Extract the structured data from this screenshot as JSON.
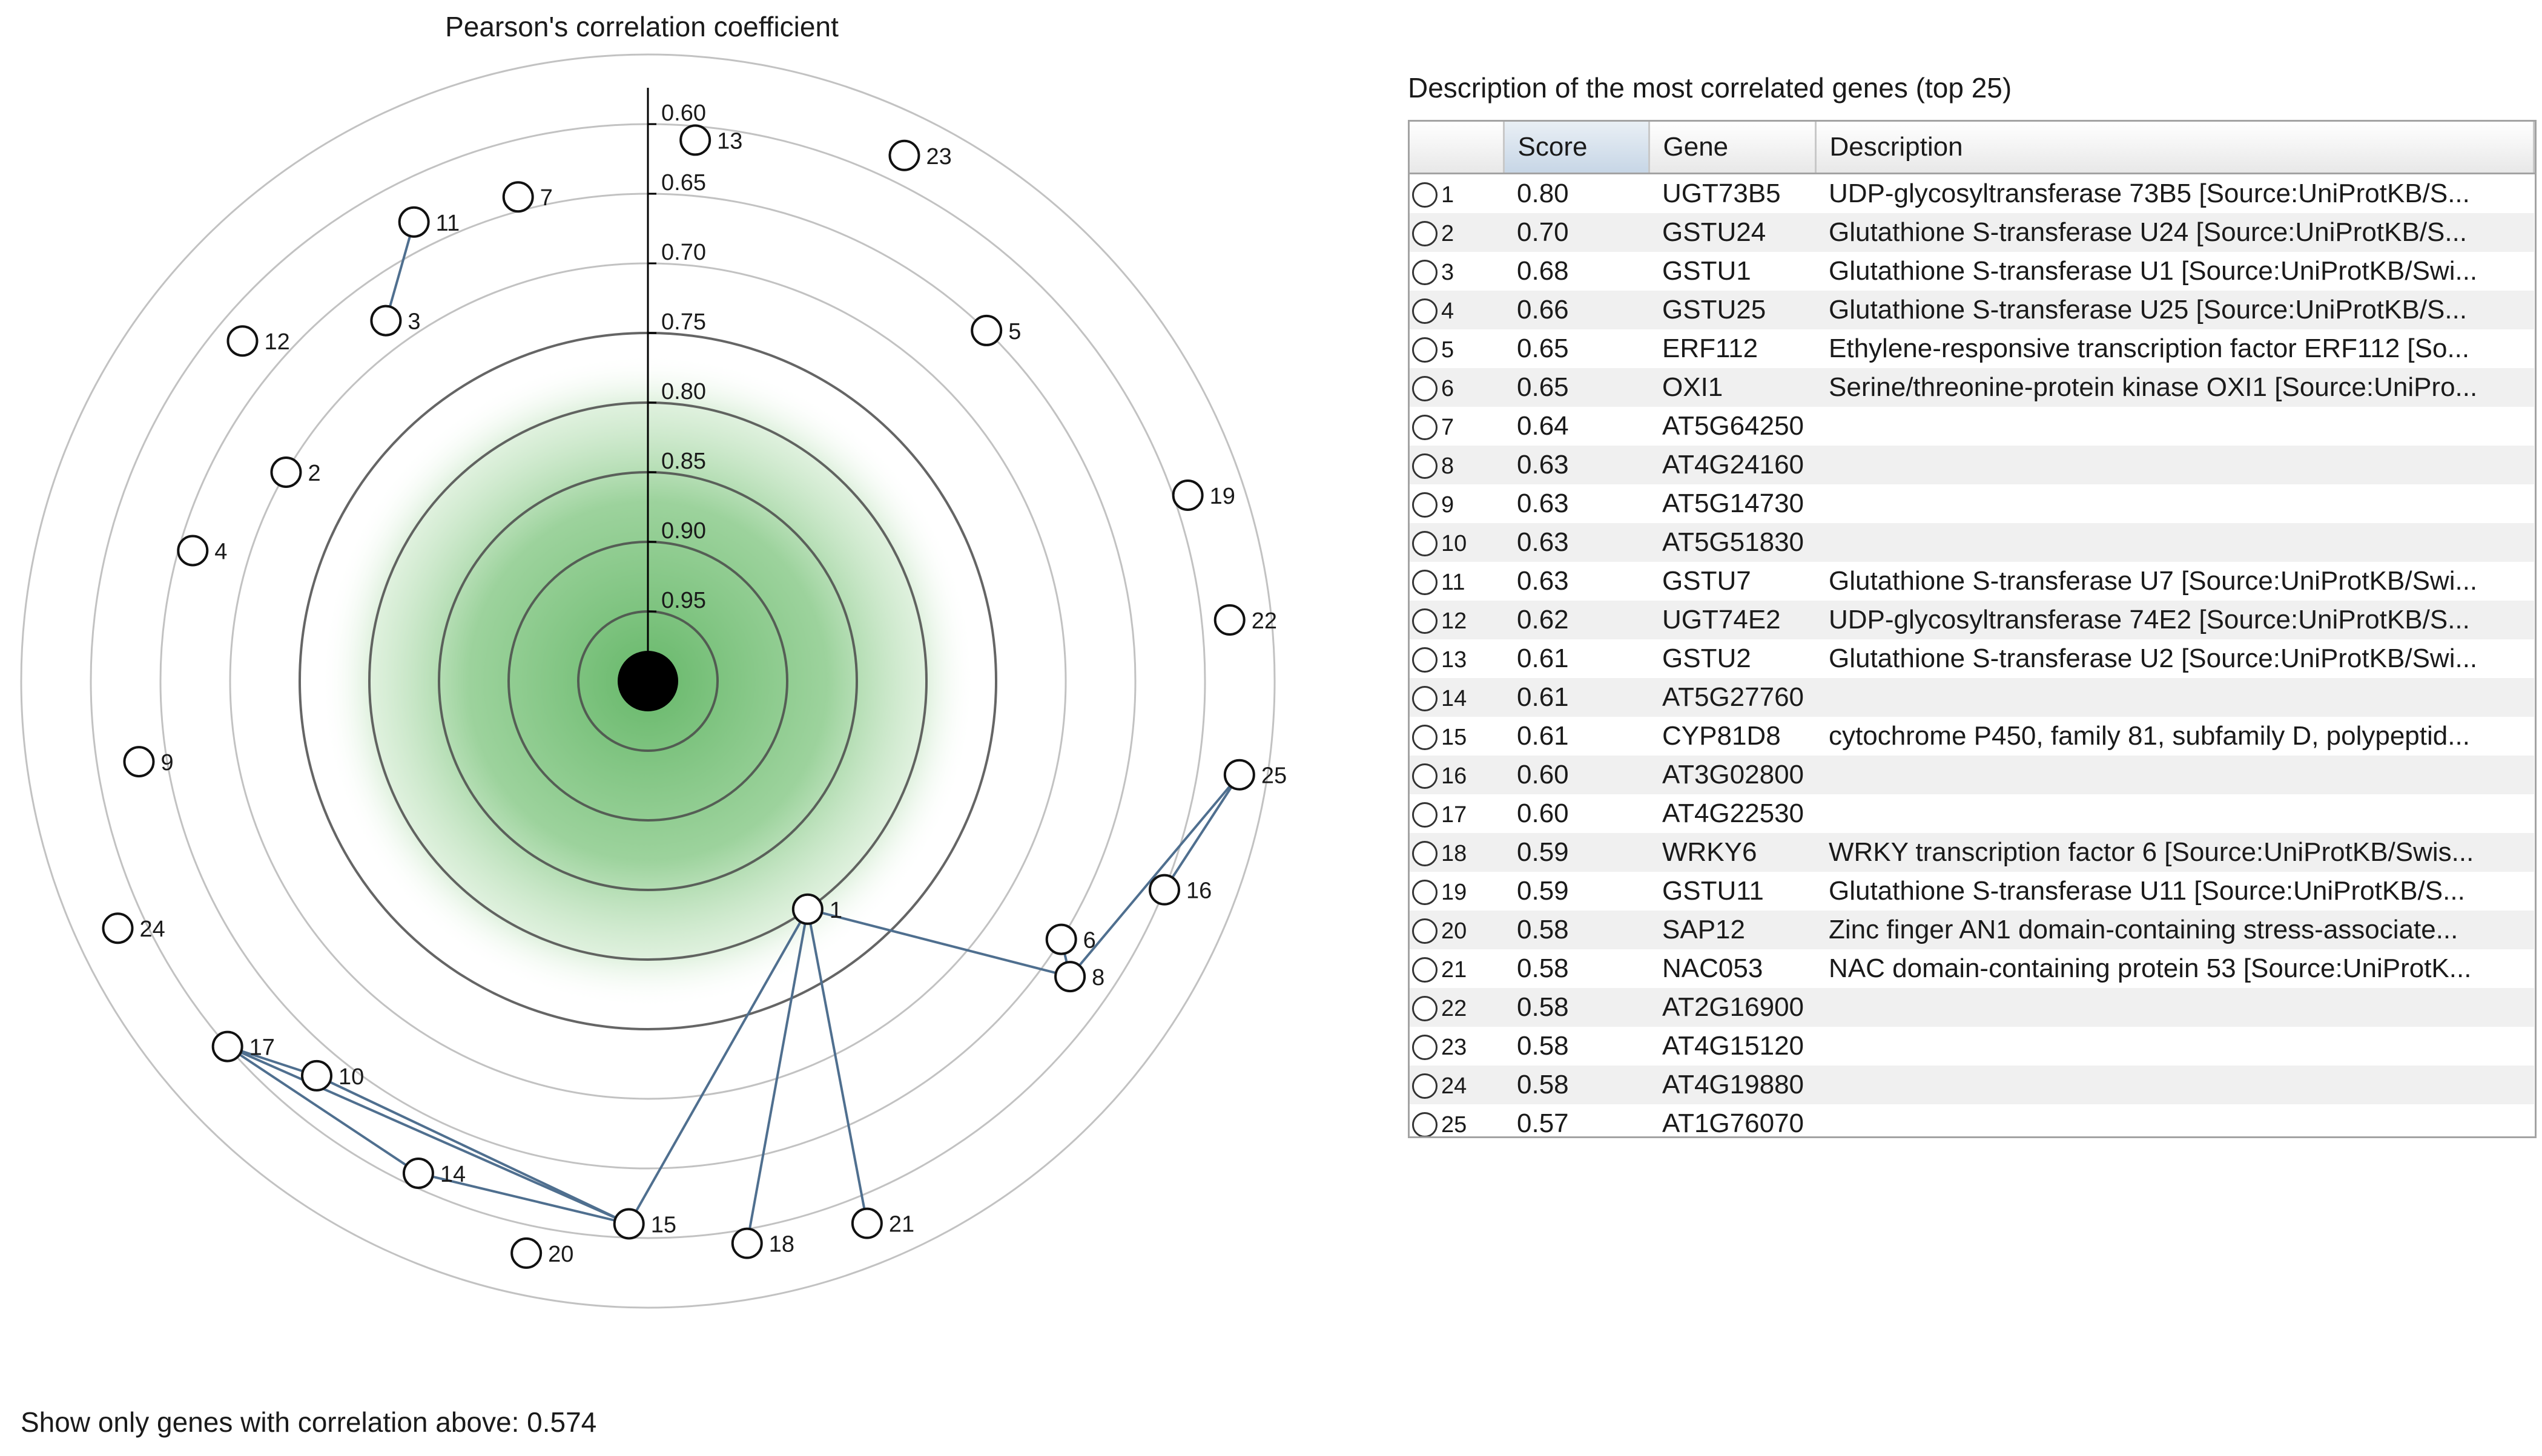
{
  "chart_data": {
    "type": "radial-network",
    "title": "Pearson's correlation coefficient",
    "center_range": [
      0.55,
      1.0
    ],
    "axis_ticks": [
      "0.60",
      "0.65",
      "0.70",
      "0.75",
      "0.80",
      "0.85",
      "0.90",
      "0.95"
    ],
    "ring_values": [
      0.6,
      0.65,
      0.7,
      0.75,
      0.8,
      0.85,
      0.9,
      0.95
    ],
    "nodes": [
      {
        "id": 1,
        "label": "1",
        "r": 0.8,
        "angle": 145
      },
      {
        "id": 2,
        "label": "2",
        "r": 0.7,
        "angle": 300
      },
      {
        "id": 3,
        "label": "3",
        "r": 0.68,
        "angle": 324
      },
      {
        "id": 4,
        "label": "4",
        "r": 0.66,
        "angle": 286
      },
      {
        "id": 5,
        "label": "5",
        "r": 0.65,
        "angle": 44
      },
      {
        "id": 6,
        "label": "6",
        "r": 0.65,
        "angle": 122
      },
      {
        "id": 7,
        "label": "7",
        "r": 0.64,
        "angle": 345
      },
      {
        "id": 8,
        "label": "8",
        "r": 0.63,
        "angle": 125
      },
      {
        "id": 9,
        "label": "9",
        "r": 0.63,
        "angle": 261
      },
      {
        "id": 10,
        "label": "10",
        "r": 0.63,
        "angle": 220
      },
      {
        "id": 11,
        "label": "11",
        "r": 0.63,
        "angle": 333
      },
      {
        "id": 12,
        "label": "12",
        "r": 0.62,
        "angle": 310
      },
      {
        "id": 13,
        "label": "13",
        "r": 0.61,
        "angle": 5
      },
      {
        "id": 14,
        "label": "14",
        "r": 0.61,
        "angle": 205
      },
      {
        "id": 15,
        "label": "15",
        "r": 0.61,
        "angle": 182
      },
      {
        "id": 16,
        "label": "16",
        "r": 0.6,
        "angle": 112
      },
      {
        "id": 17,
        "label": "17",
        "r": 0.6,
        "angle": 229
      },
      {
        "id": 18,
        "label": "18",
        "r": 0.59,
        "angle": 170
      },
      {
        "id": 19,
        "label": "19",
        "r": 0.59,
        "angle": 71
      },
      {
        "id": 20,
        "label": "20",
        "r": 0.58,
        "angle": 192
      },
      {
        "id": 21,
        "label": "21",
        "r": 0.58,
        "angle": 158
      },
      {
        "id": 22,
        "label": "22",
        "r": 0.58,
        "angle": 84
      },
      {
        "id": 23,
        "label": "23",
        "r": 0.58,
        "angle": 26
      },
      {
        "id": 24,
        "label": "24",
        "r": 0.58,
        "angle": 245
      },
      {
        "id": 25,
        "label": "25",
        "r": 0.57,
        "angle": 99
      }
    ],
    "edges": [
      [
        11,
        3
      ],
      [
        1,
        15
      ],
      [
        1,
        18
      ],
      [
        1,
        21
      ],
      [
        1,
        8
      ],
      [
        8,
        6
      ],
      [
        8,
        25
      ],
      [
        25,
        16
      ],
      [
        17,
        10
      ],
      [
        17,
        14
      ],
      [
        17,
        15
      ],
      [
        10,
        15
      ],
      [
        14,
        15
      ]
    ]
  },
  "table": {
    "title": "Description of the most correlated genes (top 25)",
    "columns": [
      "",
      "Score",
      "Gene",
      "Description"
    ],
    "rows": [
      {
        "idx": "1",
        "score": "0.80",
        "gene": "UGT73B5",
        "desc": "UDP-glycosyltransferase 73B5 [Source:UniProtKB/S..."
      },
      {
        "idx": "2",
        "score": "0.70",
        "gene": "GSTU24",
        "desc": "Glutathione S-transferase U24 [Source:UniProtKB/S..."
      },
      {
        "idx": "3",
        "score": "0.68",
        "gene": "GSTU1",
        "desc": "Glutathione S-transferase U1 [Source:UniProtKB/Swi..."
      },
      {
        "idx": "4",
        "score": "0.66",
        "gene": "GSTU25",
        "desc": "Glutathione S-transferase U25 [Source:UniProtKB/S..."
      },
      {
        "idx": "5",
        "score": "0.65",
        "gene": "ERF112",
        "desc": "Ethylene-responsive transcription factor ERF112 [So..."
      },
      {
        "idx": "6",
        "score": "0.65",
        "gene": "OXI1",
        "desc": "Serine/threonine-protein kinase OXI1 [Source:UniPro..."
      },
      {
        "idx": "7",
        "score": "0.64",
        "gene": "AT5G64250",
        "desc": ""
      },
      {
        "idx": "8",
        "score": "0.63",
        "gene": "AT4G24160",
        "desc": ""
      },
      {
        "idx": "9",
        "score": "0.63",
        "gene": "AT5G14730",
        "desc": ""
      },
      {
        "idx": "10",
        "score": "0.63",
        "gene": "AT5G51830",
        "desc": ""
      },
      {
        "idx": "11",
        "score": "0.63",
        "gene": "GSTU7",
        "desc": "Glutathione S-transferase U7 [Source:UniProtKB/Swi..."
      },
      {
        "idx": "12",
        "score": "0.62",
        "gene": "UGT74E2",
        "desc": "UDP-glycosyltransferase 74E2 [Source:UniProtKB/S..."
      },
      {
        "idx": "13",
        "score": "0.61",
        "gene": "GSTU2",
        "desc": "Glutathione S-transferase U2 [Source:UniProtKB/Swi..."
      },
      {
        "idx": "14",
        "score": "0.61",
        "gene": "AT5G27760",
        "desc": ""
      },
      {
        "idx": "15",
        "score": "0.61",
        "gene": "CYP81D8",
        "desc": "cytochrome P450, family 81, subfamily D, polypeptid..."
      },
      {
        "idx": "16",
        "score": "0.60",
        "gene": "AT3G02800",
        "desc": ""
      },
      {
        "idx": "17",
        "score": "0.60",
        "gene": "AT4G22530",
        "desc": ""
      },
      {
        "idx": "18",
        "score": "0.59",
        "gene": "WRKY6",
        "desc": "WRKY transcription factor 6 [Source:UniProtKB/Swis..."
      },
      {
        "idx": "19",
        "score": "0.59",
        "gene": "GSTU11",
        "desc": "Glutathione S-transferase U11 [Source:UniProtKB/S..."
      },
      {
        "idx": "20",
        "score": "0.58",
        "gene": "SAP12",
        "desc": "Zinc finger AN1 domain-containing stress-associate..."
      },
      {
        "idx": "21",
        "score": "0.58",
        "gene": "NAC053",
        "desc": "NAC domain-containing protein 53 [Source:UniProtK..."
      },
      {
        "idx": "22",
        "score": "0.58",
        "gene": "AT2G16900",
        "desc": ""
      },
      {
        "idx": "23",
        "score": "0.58",
        "gene": "AT4G15120",
        "desc": ""
      },
      {
        "idx": "24",
        "score": "0.58",
        "gene": "AT4G19880",
        "desc": ""
      },
      {
        "idx": "25",
        "score": "0.57",
        "gene": "AT1G76070",
        "desc": ""
      }
    ]
  },
  "filter": {
    "label": "Show only genes with correlation above:",
    "value": "0.574"
  },
  "colors": {
    "edge": "#4f6f8f",
    "ring": "#9a9a9a",
    "ring_inner": "#4a4a4a",
    "glow": "#7cc47c"
  }
}
